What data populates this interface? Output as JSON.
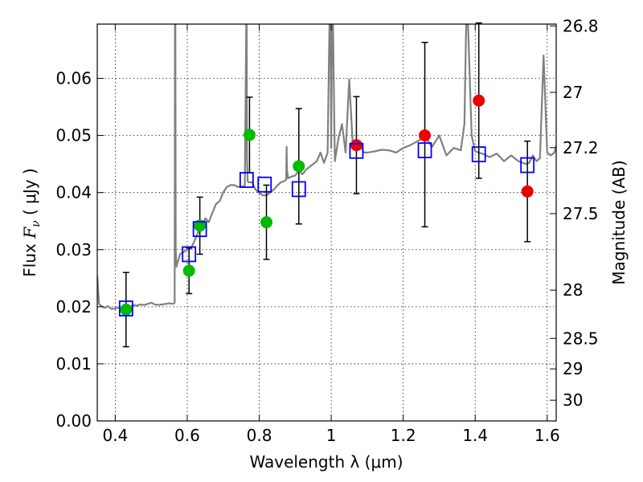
{
  "chart_data": {
    "type": "scatter",
    "xlabel": "Wavelength  λ (μm)",
    "ylabel_prefix": "Flux  ",
    "ylabel_symbol": "F",
    "ylabel_sub": "ν",
    "ylabel_suffix": "  ( μJy )",
    "y2label": "Magnitude (AB)",
    "xlim": [
      0.35,
      1.625
    ],
    "ylim": [
      0.0,
      0.0695
    ],
    "xticks": [
      0.4,
      0.6,
      0.8,
      1.0,
      1.2,
      1.4,
      1.6
    ],
    "xtick_labels": [
      "0.4",
      "0.6",
      "0.8",
      "1",
      "1.2",
      "1.4",
      "1.6"
    ],
    "yticks": [
      0.0,
      0.01,
      0.02,
      0.03,
      0.04,
      0.05,
      0.06
    ],
    "ytick_labels": [
      "0.00",
      "0.01",
      "0.02",
      "0.03",
      "0.04",
      "0.05",
      "0.06"
    ],
    "mag_ticks": [
      26.8,
      27,
      27.2,
      27.5,
      28,
      28.5,
      29,
      30
    ],
    "mag_tick_labels": [
      "26.8",
      "27",
      "27.2",
      "27.5",
      "28",
      "28.5",
      "29",
      "30"
    ],
    "grid": true,
    "colors": {
      "model": "#808080",
      "model_points": "#0000ff",
      "optical_detections": "#00bb00",
      "nir_detections": "#ee0000",
      "errorbars": "#000000"
    },
    "model_spectrum": {
      "x": [
        0.35,
        0.355,
        0.36,
        0.37,
        0.38,
        0.39,
        0.4,
        0.41,
        0.42,
        0.43,
        0.44,
        0.45,
        0.46,
        0.47,
        0.48,
        0.49,
        0.5,
        0.51,
        0.52,
        0.53,
        0.54,
        0.55,
        0.56,
        0.565,
        0.566,
        0.567,
        0.568,
        0.57,
        0.58,
        0.59,
        0.6,
        0.61,
        0.62,
        0.63,
        0.64,
        0.65,
        0.66,
        0.67,
        0.68,
        0.69,
        0.7,
        0.71,
        0.72,
        0.73,
        0.74,
        0.75,
        0.76,
        0.764,
        0.765,
        0.766,
        0.768,
        0.77,
        0.78,
        0.79,
        0.8,
        0.81,
        0.82,
        0.83,
        0.84,
        0.85,
        0.86,
        0.87,
        0.875,
        0.876,
        0.877,
        0.88,
        0.89,
        0.9,
        0.91,
        0.92,
        0.93,
        0.94,
        0.95,
        0.96,
        0.97,
        0.98,
        0.99,
        0.995,
        0.998,
        1.0,
        1.002,
        1.005,
        1.01,
        1.02,
        1.03,
        1.04,
        1.05,
        1.06,
        1.07,
        1.08,
        1.09,
        1.1,
        1.12,
        1.14,
        1.16,
        1.18,
        1.2,
        1.22,
        1.24,
        1.26,
        1.28,
        1.3,
        1.32,
        1.34,
        1.36,
        1.37,
        1.375,
        1.38,
        1.39,
        1.4,
        1.42,
        1.44,
        1.46,
        1.48,
        1.5,
        1.52,
        1.54,
        1.55,
        1.56,
        1.57,
        1.58,
        1.59,
        1.6,
        1.61,
        1.62,
        1.625
      ],
      "y": [
        0.0255,
        0.0205,
        0.0202,
        0.0198,
        0.0201,
        0.0196,
        0.0197,
        0.0199,
        0.0196,
        0.0198,
        0.0199,
        0.0203,
        0.0202,
        0.0204,
        0.0203,
        0.0205,
        0.0207,
        0.0204,
        0.0203,
        0.0204,
        0.0205,
        0.0206,
        0.0205,
        0.0207,
        0.0695,
        0.0695,
        0.03,
        0.027,
        0.0292,
        0.0296,
        0.03,
        0.0302,
        0.0315,
        0.033,
        0.034,
        0.0355,
        0.0348,
        0.0365,
        0.038,
        0.0385,
        0.04,
        0.041,
        0.0413,
        0.0413,
        0.041,
        0.041,
        0.0412,
        0.0695,
        0.0695,
        0.046,
        0.042,
        0.0418,
        0.0418,
        0.0405,
        0.04,
        0.0395,
        0.0395,
        0.04,
        0.0405,
        0.0412,
        0.0418,
        0.042,
        0.0423,
        0.048,
        0.044,
        0.0425,
        0.0428,
        0.043,
        0.0438,
        0.0432,
        0.044,
        0.0445,
        0.045,
        0.0455,
        0.047,
        0.0452,
        0.047,
        0.0695,
        0.0695,
        0.0478,
        0.0695,
        0.0695,
        0.0455,
        0.0495,
        0.052,
        0.047,
        0.0598,
        0.048,
        0.049,
        0.0485,
        0.047,
        0.047,
        0.0472,
        0.0475,
        0.0474,
        0.047,
        0.0478,
        0.0483,
        0.049,
        0.0498,
        0.048,
        0.05,
        0.0465,
        0.0478,
        0.0474,
        0.052,
        0.0695,
        0.0695,
        0.05,
        0.0472,
        0.0468,
        0.0462,
        0.0468,
        0.0455,
        0.0465,
        0.0455,
        0.045,
        0.0452,
        0.0465,
        0.0455,
        0.046,
        0.064,
        0.047,
        0.0465,
        0.047,
        0.0482
      ]
    },
    "model_points": {
      "x": [
        0.43,
        0.605,
        0.635,
        0.765,
        0.815,
        0.91,
        1.07,
        1.26,
        1.41,
        1.545
      ],
      "y": [
        0.0197,
        0.0292,
        0.0336,
        0.0422,
        0.0414,
        0.0406,
        0.0473,
        0.0474,
        0.0467,
        0.0448
      ]
    },
    "detections": [
      {
        "group": "optical",
        "x": 0.43,
        "y": 0.0195,
        "err_lo": 0.0065,
        "err_hi": 0.0065
      },
      {
        "group": "optical",
        "x": 0.605,
        "y": 0.0263,
        "err_lo": 0.004,
        "err_hi": 0.004
      },
      {
        "group": "optical",
        "x": 0.635,
        "y": 0.0342,
        "err_lo": 0.005,
        "err_hi": 0.005
      },
      {
        "group": "optical",
        "x": 0.773,
        "y": 0.0501,
        "err_lo": 0.0066,
        "err_hi": 0.0066
      },
      {
        "group": "optical",
        "x": 0.82,
        "y": 0.0348,
        "err_lo": 0.0065,
        "err_hi": 0.0065
      },
      {
        "group": "optical",
        "x": 0.91,
        "y": 0.0446,
        "err_lo": 0.0101,
        "err_hi": 0.0101
      },
      {
        "group": "nir",
        "x": 1.07,
        "y": 0.0483,
        "err_lo": 0.0085,
        "err_hi": 0.0085
      },
      {
        "group": "nir",
        "x": 1.26,
        "y": 0.05,
        "err_lo": 0.016,
        "err_hi": 0.0163
      },
      {
        "group": "nir",
        "x": 1.41,
        "y": 0.0561,
        "err_lo": 0.0136,
        "err_hi": 0.0136
      },
      {
        "group": "nir",
        "x": 1.545,
        "y": 0.0402,
        "err_lo": 0.0088,
        "err_hi": 0.0088
      }
    ]
  }
}
